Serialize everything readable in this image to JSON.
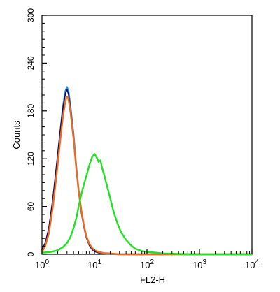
{
  "chart_data": {
    "type": "line",
    "xlabel": "FL2-H",
    "ylabel": "Counts",
    "x_scale": "log",
    "xlim": [
      1,
      10000
    ],
    "ylim": [
      0,
      300
    ],
    "grid": false,
    "x_ticks": [
      {
        "value": 1,
        "base": "10",
        "exp": "0"
      },
      {
        "value": 10,
        "base": "10",
        "exp": "1"
      },
      {
        "value": 100,
        "base": "10",
        "exp": "2"
      },
      {
        "value": 1000,
        "base": "10",
        "exp": "3"
      },
      {
        "value": 10000,
        "base": "10",
        "exp": "4"
      }
    ],
    "y_ticks": [
      {
        "value": 0,
        "label": "0"
      },
      {
        "value": 60,
        "label": "60"
      },
      {
        "value": 120,
        "label": "120"
      },
      {
        "value": 180,
        "label": "180"
      },
      {
        "value": 240,
        "label": "240"
      },
      {
        "value": 300,
        "label": "300"
      }
    ],
    "series": [
      {
        "color": "#2a90d8",
        "points": [
          [
            1.0,
            5
          ],
          [
            1.15,
            12
          ],
          [
            1.35,
            30
          ],
          [
            1.6,
            65
          ],
          [
            1.9,
            110
          ],
          [
            2.2,
            150
          ],
          [
            2.5,
            185
          ],
          [
            2.8,
            205
          ],
          [
            3.0,
            210
          ],
          [
            3.2,
            205
          ],
          [
            3.5,
            185
          ],
          [
            4.0,
            150
          ],
          [
            4.5,
            110
          ],
          [
            5.0,
            80
          ],
          [
            5.6,
            55
          ],
          [
            6.3,
            35
          ],
          [
            7.0,
            22
          ],
          [
            8.0,
            12
          ],
          [
            9.0,
            7
          ],
          [
            10,
            4
          ],
          [
            12,
            2
          ],
          [
            15,
            1
          ],
          [
            20,
            0.5
          ],
          [
            30,
            0
          ],
          [
            10000,
            0
          ]
        ]
      },
      {
        "color": "#0a0a6a",
        "points": [
          [
            1.0,
            6
          ],
          [
            1.15,
            14
          ],
          [
            1.35,
            33
          ],
          [
            1.6,
            68
          ],
          [
            1.9,
            112
          ],
          [
            2.2,
            152
          ],
          [
            2.5,
            183
          ],
          [
            2.8,
            202
          ],
          [
            3.0,
            207
          ],
          [
            3.2,
            201
          ],
          [
            3.5,
            182
          ],
          [
            4.0,
            147
          ],
          [
            4.5,
            108
          ],
          [
            5.0,
            78
          ],
          [
            5.6,
            53
          ],
          [
            6.3,
            34
          ],
          [
            7.0,
            21
          ],
          [
            8.0,
            11
          ],
          [
            9.0,
            6
          ],
          [
            10,
            3.5
          ],
          [
            12,
            2
          ],
          [
            15,
            1
          ],
          [
            20,
            0.5
          ],
          [
            30,
            0
          ],
          [
            10000,
            0
          ]
        ]
      },
      {
        "color": "#f06a1e",
        "points": [
          [
            1.0,
            3
          ],
          [
            1.15,
            10
          ],
          [
            1.35,
            26
          ],
          [
            1.6,
            58
          ],
          [
            1.9,
            100
          ],
          [
            2.2,
            140
          ],
          [
            2.5,
            172
          ],
          [
            2.8,
            193
          ],
          [
            3.0,
            198
          ],
          [
            3.2,
            195
          ],
          [
            3.5,
            178
          ],
          [
            4.0,
            145
          ],
          [
            4.5,
            108
          ],
          [
            5.0,
            80
          ],
          [
            5.6,
            56
          ],
          [
            6.3,
            36
          ],
          [
            7.0,
            23
          ],
          [
            8.0,
            13
          ],
          [
            9.0,
            8
          ],
          [
            10,
            5
          ],
          [
            12,
            3
          ],
          [
            15,
            1.5
          ],
          [
            20,
            1
          ],
          [
            30,
            0
          ],
          [
            10000,
            0
          ]
        ]
      },
      {
        "color": "#22e022",
        "points": [
          [
            1.0,
            2
          ],
          [
            1.5,
            3
          ],
          [
            2.0,
            5
          ],
          [
            2.5,
            9
          ],
          [
            3.0,
            14
          ],
          [
            3.5,
            22
          ],
          [
            4.0,
            33
          ],
          [
            4.5,
            45
          ],
          [
            5.0,
            60
          ],
          [
            5.6,
            75
          ],
          [
            6.3,
            88
          ],
          [
            7.0,
            98
          ],
          [
            8.0,
            112
          ],
          [
            9.0,
            122
          ],
          [
            10,
            126
          ],
          [
            11,
            122
          ],
          [
            12,
            116
          ],
          [
            13,
            118
          ],
          [
            14,
            108
          ],
          [
            15,
            102
          ],
          [
            17,
            88
          ],
          [
            20,
            70
          ],
          [
            23,
            54
          ],
          [
            27,
            40
          ],
          [
            32,
            28
          ],
          [
            40,
            18
          ],
          [
            50,
            11
          ],
          [
            60,
            7
          ],
          [
            80,
            4
          ],
          [
            100,
            3
          ],
          [
            150,
            2
          ],
          [
            200,
            1
          ],
          [
            400,
            0.5
          ],
          [
            1000,
            0
          ],
          [
            10000,
            0
          ]
        ]
      }
    ]
  }
}
